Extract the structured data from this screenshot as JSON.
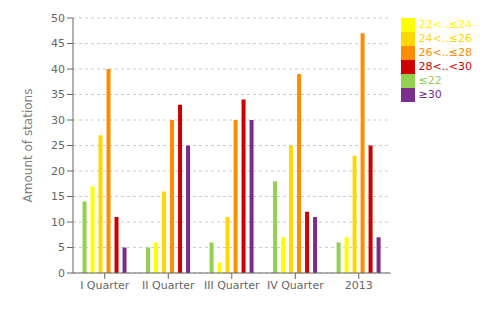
{
  "chart_data": {
    "type": "bar",
    "ylabel": "Amount of stations",
    "categories": [
      "I Quarter",
      "II Quarter",
      "III Quarter",
      "IV Quarter",
      "2013"
    ],
    "series": [
      {
        "name": "≤22",
        "color": "#92d050",
        "values": [
          14,
          5,
          6,
          18,
          6
        ]
      },
      {
        "name": "22<..≤24",
        "color": "#ffff00",
        "values": [
          17,
          6,
          2,
          7,
          7
        ]
      },
      {
        "name": "24<..≤26",
        "color": "#ffd700",
        "values": [
          27,
          16,
          11,
          25,
          23
        ]
      },
      {
        "name": "26<..≤28",
        "color": "#ff8c00",
        "values": [
          40,
          30,
          30,
          39,
          47
        ]
      },
      {
        "name": "28<..<30",
        "color": "#cc0000",
        "values": [
          11,
          33,
          34,
          12,
          25
        ]
      },
      {
        "name": "≥30",
        "color": "#7b2d8b",
        "values": [
          5,
          25,
          30,
          11,
          7
        ]
      }
    ],
    "ylim": [
      0,
      50
    ],
    "yticks": [
      0,
      5,
      10,
      15,
      20,
      25,
      30,
      35,
      40,
      45,
      50
    ],
    "grid": true,
    "legend": "right"
  }
}
